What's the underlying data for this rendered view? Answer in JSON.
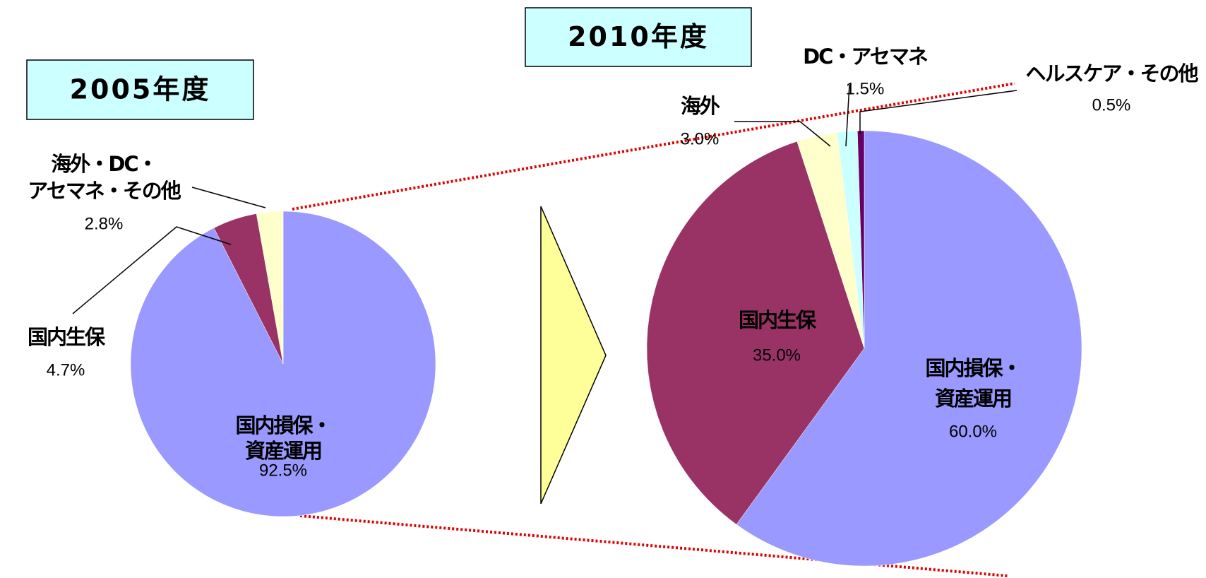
{
  "chart_data": [
    {
      "type": "pie",
      "title": "2005年度",
      "categories": [
        [
          "国内損保・",
          "資産運用"
        ],
        [
          "国内生保"
        ],
        [
          "海外・DC・",
          "アセマネ・その他"
        ]
      ],
      "values": [
        92.5,
        4.7,
        2.8
      ],
      "value_labels": [
        "92.5%",
        "4.7%",
        "2.8%"
      ],
      "colors": [
        "#9999ff",
        "#993366",
        "#ffffcc"
      ]
    },
    {
      "type": "pie",
      "title": "2010年度",
      "categories": [
        [
          "国内損保・",
          "資産運用"
        ],
        [
          "国内生保"
        ],
        [
          "海外"
        ],
        [
          "DC・アセマネ"
        ],
        [
          "ヘルスケア・その他"
        ]
      ],
      "values": [
        60.0,
        35.0,
        3.0,
        1.5,
        0.5
      ],
      "value_labels": [
        "60.0%",
        "35.0%",
        "3.0%",
        "1.5%",
        "0.5%"
      ],
      "colors": [
        "#9999ff",
        "#993366",
        "#ffffcc",
        "#ccffff",
        "#660066"
      ]
    }
  ]
}
